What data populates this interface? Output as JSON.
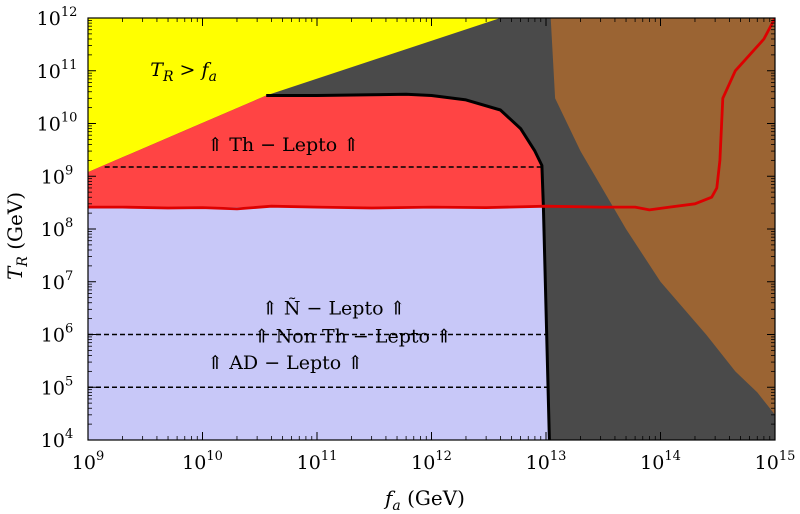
{
  "chart_data": {
    "type": "area",
    "x_scale": "log",
    "y_scale": "log",
    "xlim": [
      1000000000.0,
      1000000000000000.0
    ],
    "ylim": [
      10000.0,
      1000000000000.0
    ],
    "xlabel": {
      "main": "f",
      "sub": "a",
      "unit": " (GeV)"
    },
    "ylabel": {
      "main": "T",
      "sub": "R",
      "unit": " (GeV)"
    },
    "x_ticks": [
      {
        "value": 1000000000.0,
        "base": "10",
        "exp": "9"
      },
      {
        "value": 10000000000.0,
        "base": "10",
        "exp": "10"
      },
      {
        "value": 100000000000.0,
        "base": "10",
        "exp": "11"
      },
      {
        "value": 1000000000000.0,
        "base": "10",
        "exp": "12"
      },
      {
        "value": 10000000000000.0,
        "base": "10",
        "exp": "13"
      },
      {
        "value": 100000000000000.0,
        "base": "10",
        "exp": "14"
      },
      {
        "value": 1000000000000000.0,
        "base": "10",
        "exp": "15"
      }
    ],
    "y_ticks": [
      {
        "value": 10000.0,
        "base": "10",
        "exp": "4"
      },
      {
        "value": 100000.0,
        "base": "10",
        "exp": "5"
      },
      {
        "value": 1000000.0,
        "base": "10",
        "exp": "6"
      },
      {
        "value": 10000000.0,
        "base": "10",
        "exp": "7"
      },
      {
        "value": 100000000.0,
        "base": "10",
        "exp": "8"
      },
      {
        "value": 1000000000.0,
        "base": "10",
        "exp": "9"
      },
      {
        "value": 10000000000.0,
        "base": "10",
        "exp": "10"
      },
      {
        "value": 100000000000.0,
        "base": "10",
        "exp": "11"
      },
      {
        "value": 1000000000000.0,
        "base": "10",
        "exp": "12"
      }
    ],
    "regions": [
      {
        "name": "dark-gray-excluded",
        "color": "#4a4a4a",
        "points": [
          [
            1000000000.0,
            10000.0
          ],
          [
            1000000000.0,
            1000000000000.0
          ],
          [
            1000000000000000.0,
            1000000000000.0
          ],
          [
            1000000000000000.0,
            10000.0
          ]
        ]
      },
      {
        "name": "brown-excluded",
        "color": "#9b6433",
        "points": [
          [
            11000000000000.0,
            1000000000000.0
          ],
          [
            12000000000000.0,
            30000000000.0
          ],
          [
            20000000000000.0,
            3000000000.0
          ],
          [
            50000000000000.0,
            100000000.0
          ],
          [
            100000000000000.0,
            10000000.0
          ],
          [
            250000000000000.0,
            1000000.0
          ],
          [
            450000000000000.0,
            200000.0
          ],
          [
            700000000000000.0,
            80000.0
          ],
          [
            1000000000000000.0,
            30000.0
          ],
          [
            1000000000000000.0,
            1000000000000.0
          ]
        ]
      },
      {
        "name": "yellow-TR-gt-fa",
        "color": "#ffff00",
        "points": [
          [
            1000000000.0,
            1000000000000.0
          ],
          [
            1000000000.0,
            1200000000.0
          ],
          [
            36000000000.0,
            34000000000.0
          ],
          [
            4000000000000.0,
            1000000000000.0
          ]
        ]
      },
      {
        "name": "lavender-leptogenesis",
        "color": "#c8c8f8",
        "points": [
          [
            1000000000.0,
            10000.0
          ],
          [
            1000000000.0,
            260000000.0
          ],
          [
            9500000000000.0,
            260000000.0
          ],
          [
            10700000000000.0,
            10000.0
          ]
        ]
      },
      {
        "name": "red-thermal-leptogenesis",
        "color": "#ff4444",
        "points": [
          [
            1000000000.0,
            260000000.0
          ],
          [
            1000000000.0,
            1200000000.0
          ],
          [
            36000000000.0,
            34000000000.0
          ],
          [
            100000000000.0,
            34000000000.0
          ],
          [
            300000000000.0,
            35000000000.0
          ],
          [
            600000000000.0,
            36000000000.0
          ],
          [
            1000000000000.0,
            34000000000.0
          ],
          [
            2000000000000.0,
            28000000000.0
          ],
          [
            4000000000000.0,
            18000000000.0
          ],
          [
            6000000000000.0,
            8000000000.0
          ],
          [
            8000000000000.0,
            3000000000.0
          ],
          [
            9200000000000.0,
            1600000000.0
          ],
          [
            9500000000000.0,
            260000000.0
          ]
        ]
      }
    ],
    "series": [
      {
        "name": "",
        "style": "solid",
        "color": "#000000",
        "points": [
          [
            36000000000.0,
            34000000000.0
          ],
          [
            100000000000.0,
            34000000000.0
          ],
          [
            300000000000.0,
            35000000000.0
          ],
          [
            600000000000.0,
            36000000000.0
          ],
          [
            1000000000000.0,
            34000000000.0
          ],
          [
            2000000000000.0,
            28000000000.0
          ],
          [
            4000000000000.0,
            18000000000.0
          ],
          [
            6000000000000.0,
            8000000000.0
          ],
          [
            8000000000000.0,
            3000000000.0
          ],
          [
            9200000000000.0,
            1600000000.0
          ],
          [
            9500000000000.0,
            260000000.0
          ],
          [
            10700000000000.0,
            10000.0
          ]
        ]
      },
      {
        "name": "",
        "style": "solid",
        "color": "#dd0000",
        "points": [
          [
            1000000000.0,
            260000000.0
          ],
          [
            2000000000.0,
            260000000.0
          ],
          [
            5000000000.0,
            250000000.0
          ],
          [
            10000000000.0,
            255000000.0
          ],
          [
            20000000000.0,
            240000000.0
          ],
          [
            40000000000.0,
            270000000.0
          ],
          [
            100000000000.0,
            260000000.0
          ],
          [
            300000000000.0,
            250000000.0
          ],
          [
            1000000000000.0,
            260000000.0
          ],
          [
            3000000000000.0,
            255000000.0
          ],
          [
            10000000000000.0,
            270000000.0
          ],
          [
            30000000000000.0,
            260000000.0
          ],
          [
            60000000000000.0,
            260000000.0
          ],
          [
            80000000000000.0,
            230000000.0
          ],
          [
            120000000000000.0,
            260000000.0
          ],
          [
            200000000000000.0,
            300000000.0
          ],
          [
            280000000000000.0,
            400000000.0
          ],
          [
            310000000000000.0,
            600000000.0
          ],
          [
            330000000000000.0,
            2000000000.0
          ],
          [
            350000000000000.0,
            30000000000.0
          ],
          [
            450000000000000.0,
            100000000000.0
          ],
          [
            600000000000000.0,
            200000000000.0
          ],
          [
            800000000000000.0,
            400000000000.0
          ],
          [
            1000000000000000.0,
            1000000000000.0
          ]
        ]
      },
      {
        "name": "",
        "style": "dashed",
        "color": "#000000",
        "points": [
          [
            1400000000.0,
            1500000000.0
          ],
          [
            9200000000000.0,
            1500000000.0
          ]
        ]
      },
      {
        "name": "",
        "style": "dashed",
        "color": "#000000",
        "points": [
          [
            1000000000.0,
            1000000.0
          ],
          [
            10200000000000.0,
            1000000.0
          ]
        ]
      },
      {
        "name": "",
        "style": "dashed",
        "color": "#000000",
        "points": [
          [
            1000000000.0,
            100000.0
          ],
          [
            10400000000000.0,
            100000.0
          ]
        ]
      }
    ],
    "annotations": [
      {
        "parts": [
          "T",
          "R",
          " > ",
          "f",
          "a"
        ],
        "x": 3500000000.0,
        "y": 80000000000.0
      },
      {
        "text": "⇑ Th − Lepto ⇑",
        "x": 11000000000.0,
        "y": 3000000000.0
      },
      {
        "text": "⇑ Ñ − Lepto ⇑",
        "x": 33000000000.0,
        "y": 2400000.0
      },
      {
        "text": "⇑ Non Th − Lepto ⇑",
        "x": 28000000000.0,
        "y": 700000.0
      },
      {
        "text": "⇑ AD − Lepto ⇑",
        "x": 11000000000.0,
        "y": 220000.0
      }
    ],
    "grid": false
  }
}
